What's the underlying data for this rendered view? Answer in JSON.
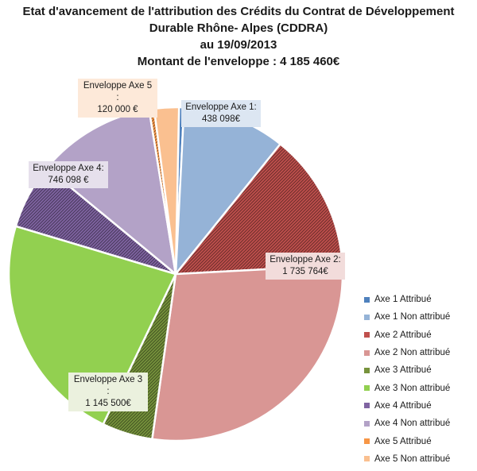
{
  "title": {
    "line1": "Etat d'avancement de l'attribution des Crédits du  Contrat de Développement",
    "line2": "Durable Rhône- Alpes (CDDRA)",
    "line3": "au 19/09/2013",
    "line4": "Montant de l'enveloppe : 4 185 460€"
  },
  "callouts": [
    {
      "label": "Enveloppe Axe 1:",
      "value": "438 098€",
      "bg": "#dce6f2"
    },
    {
      "label": "Enveloppe Axe 2:",
      "value": "1 735 764€",
      "bg": "#f2dcdb"
    },
    {
      "label": "Enveloppe Axe 3 :",
      "value": "1 145 500€",
      "bg": "#ebf1de"
    },
    {
      "label": "Enveloppe Axe 4:",
      "value": "746 098 €",
      "bg": "#e6e0ec"
    },
    {
      "label": "Enveloppe Axe 5 :",
      "value": "120 000 €",
      "bg": "#fde9d9"
    }
  ],
  "chart_data": {
    "type": "pie",
    "title": "Etat d'avancement de l'attribution des Crédits du  Contrat de Développement Durable Rhône- Alpes (CDDRA) au 19/09/2013",
    "total": 4185460,
    "legend_position": "right",
    "slices": [
      {
        "name": "Axe 1 Attribué",
        "value": 20000,
        "color": "#4f81bd",
        "pattern": "solid"
      },
      {
        "name": "Axe 1 Non attribué",
        "value": 418098,
        "color": "#95b3d7",
        "pattern": "solid"
      },
      {
        "name": "Axe 2 Attribué",
        "value": 560000,
        "color": "#c0504d",
        "pattern": "hatch"
      },
      {
        "name": "Axe 2 Non attribué",
        "value": 1175764,
        "color": "#d99694",
        "pattern": "solid"
      },
      {
        "name": "Axe 3 Attribué",
        "value": 205000,
        "color": "#77933c",
        "pattern": "hatch"
      },
      {
        "name": "Axe 3 Non attribué",
        "value": 940500,
        "color": "#92d050",
        "pattern": "solid"
      },
      {
        "name": "Axe 4 Attribué",
        "value": 266000,
        "color": "#8064a2",
        "pattern": "hatch"
      },
      {
        "name": "Axe 4 Non attribué",
        "value": 480098,
        "color": "#b3a2c7",
        "pattern": "solid"
      },
      {
        "name": "Axe 5 Attribué",
        "value": 20000,
        "color": "#f79646",
        "pattern": "hatch"
      },
      {
        "name": "Axe 5 Non attribué",
        "value": 100000,
        "color": "#fac090",
        "pattern": "solid"
      }
    ]
  }
}
